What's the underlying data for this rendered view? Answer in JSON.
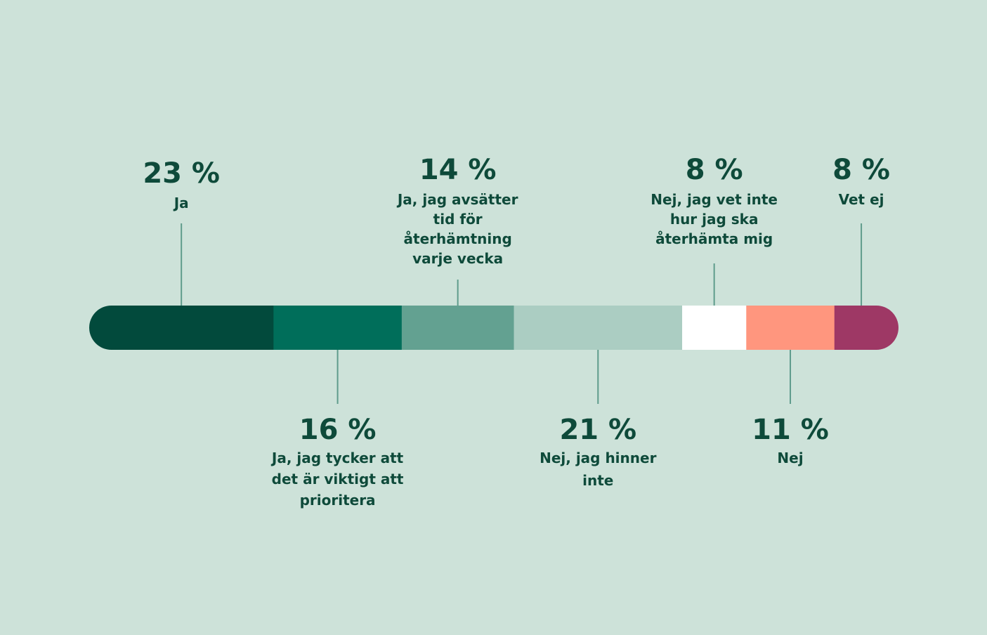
{
  "chart_data": {
    "type": "bar",
    "orientation": "horizontal-stacked-100",
    "categories": [
      "Ja",
      "Ja, jag tycker att det är viktigt att prioritera",
      "Ja, jag avsätter tid för återhämtning varje vecka",
      "Nej, jag hinner inte",
      "Nej, jag vet inte hur jag ska återhämta mig",
      "Nej",
      "Vet ej"
    ],
    "values": [
      23,
      16,
      14,
      21,
      8,
      11,
      8
    ],
    "value_labels": [
      "23 %",
      "16 %",
      "14 %",
      "21 %",
      "8 %",
      "11 %",
      "8 %"
    ],
    "label_lines": [
      [
        "Ja"
      ],
      [
        "Ja, jag tycker att",
        "det är viktigt att",
        "prioritera"
      ],
      [
        "Ja, jag avsätter",
        "tid för",
        "återhämtning",
        "varje vecka"
      ],
      [
        "Nej, jag hinner",
        "inte"
      ],
      [
        "Nej, jag vet inte",
        "hur jag ska",
        "återhämta mig"
      ],
      [
        "Nej"
      ],
      [
        "Vet ej"
      ]
    ],
    "label_side": [
      "top",
      "bottom",
      "top",
      "bottom",
      "top",
      "bottom",
      "top"
    ],
    "colors": [
      "#024a3c",
      "#006e5a",
      "#63a191",
      "#abcdc2",
      "#ffffff",
      "#ff967e",
      "#9e3865"
    ],
    "xlim": [
      0,
      100
    ],
    "grid": false,
    "legend": "none"
  }
}
